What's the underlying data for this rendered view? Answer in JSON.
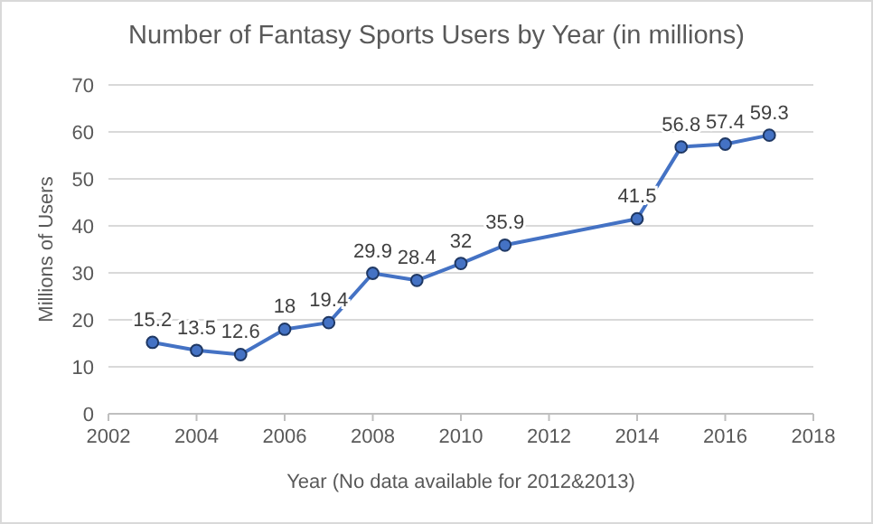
{
  "chart_data": {
    "type": "line",
    "title": "Number of Fantasy Sports Users by Year (in millions)",
    "xlabel": "Year (No data available for 2012&2013)",
    "ylabel": "Millions of Users",
    "x": [
      2003,
      2004,
      2005,
      2006,
      2007,
      2008,
      2009,
      2010,
      2011,
      2014,
      2015,
      2016,
      2017
    ],
    "series": [
      {
        "color": "#4472c4",
        "values": [
          15.2,
          13.5,
          12.6,
          18,
          19.4,
          29.9,
          28.4,
          32,
          35.9,
          41.5,
          56.8,
          57.4,
          59.3
        ]
      }
    ],
    "xlim": [
      2002,
      2018
    ],
    "xticks": [
      2002,
      2004,
      2006,
      2008,
      2010,
      2012,
      2014,
      2016,
      2018
    ],
    "ylim": [
      0,
      70
    ],
    "yticks": [
      0,
      10,
      20,
      30,
      40,
      50,
      60,
      70
    ],
    "grid": "y",
    "marker": "circle",
    "line_style": "solid",
    "data_labels": true
  }
}
